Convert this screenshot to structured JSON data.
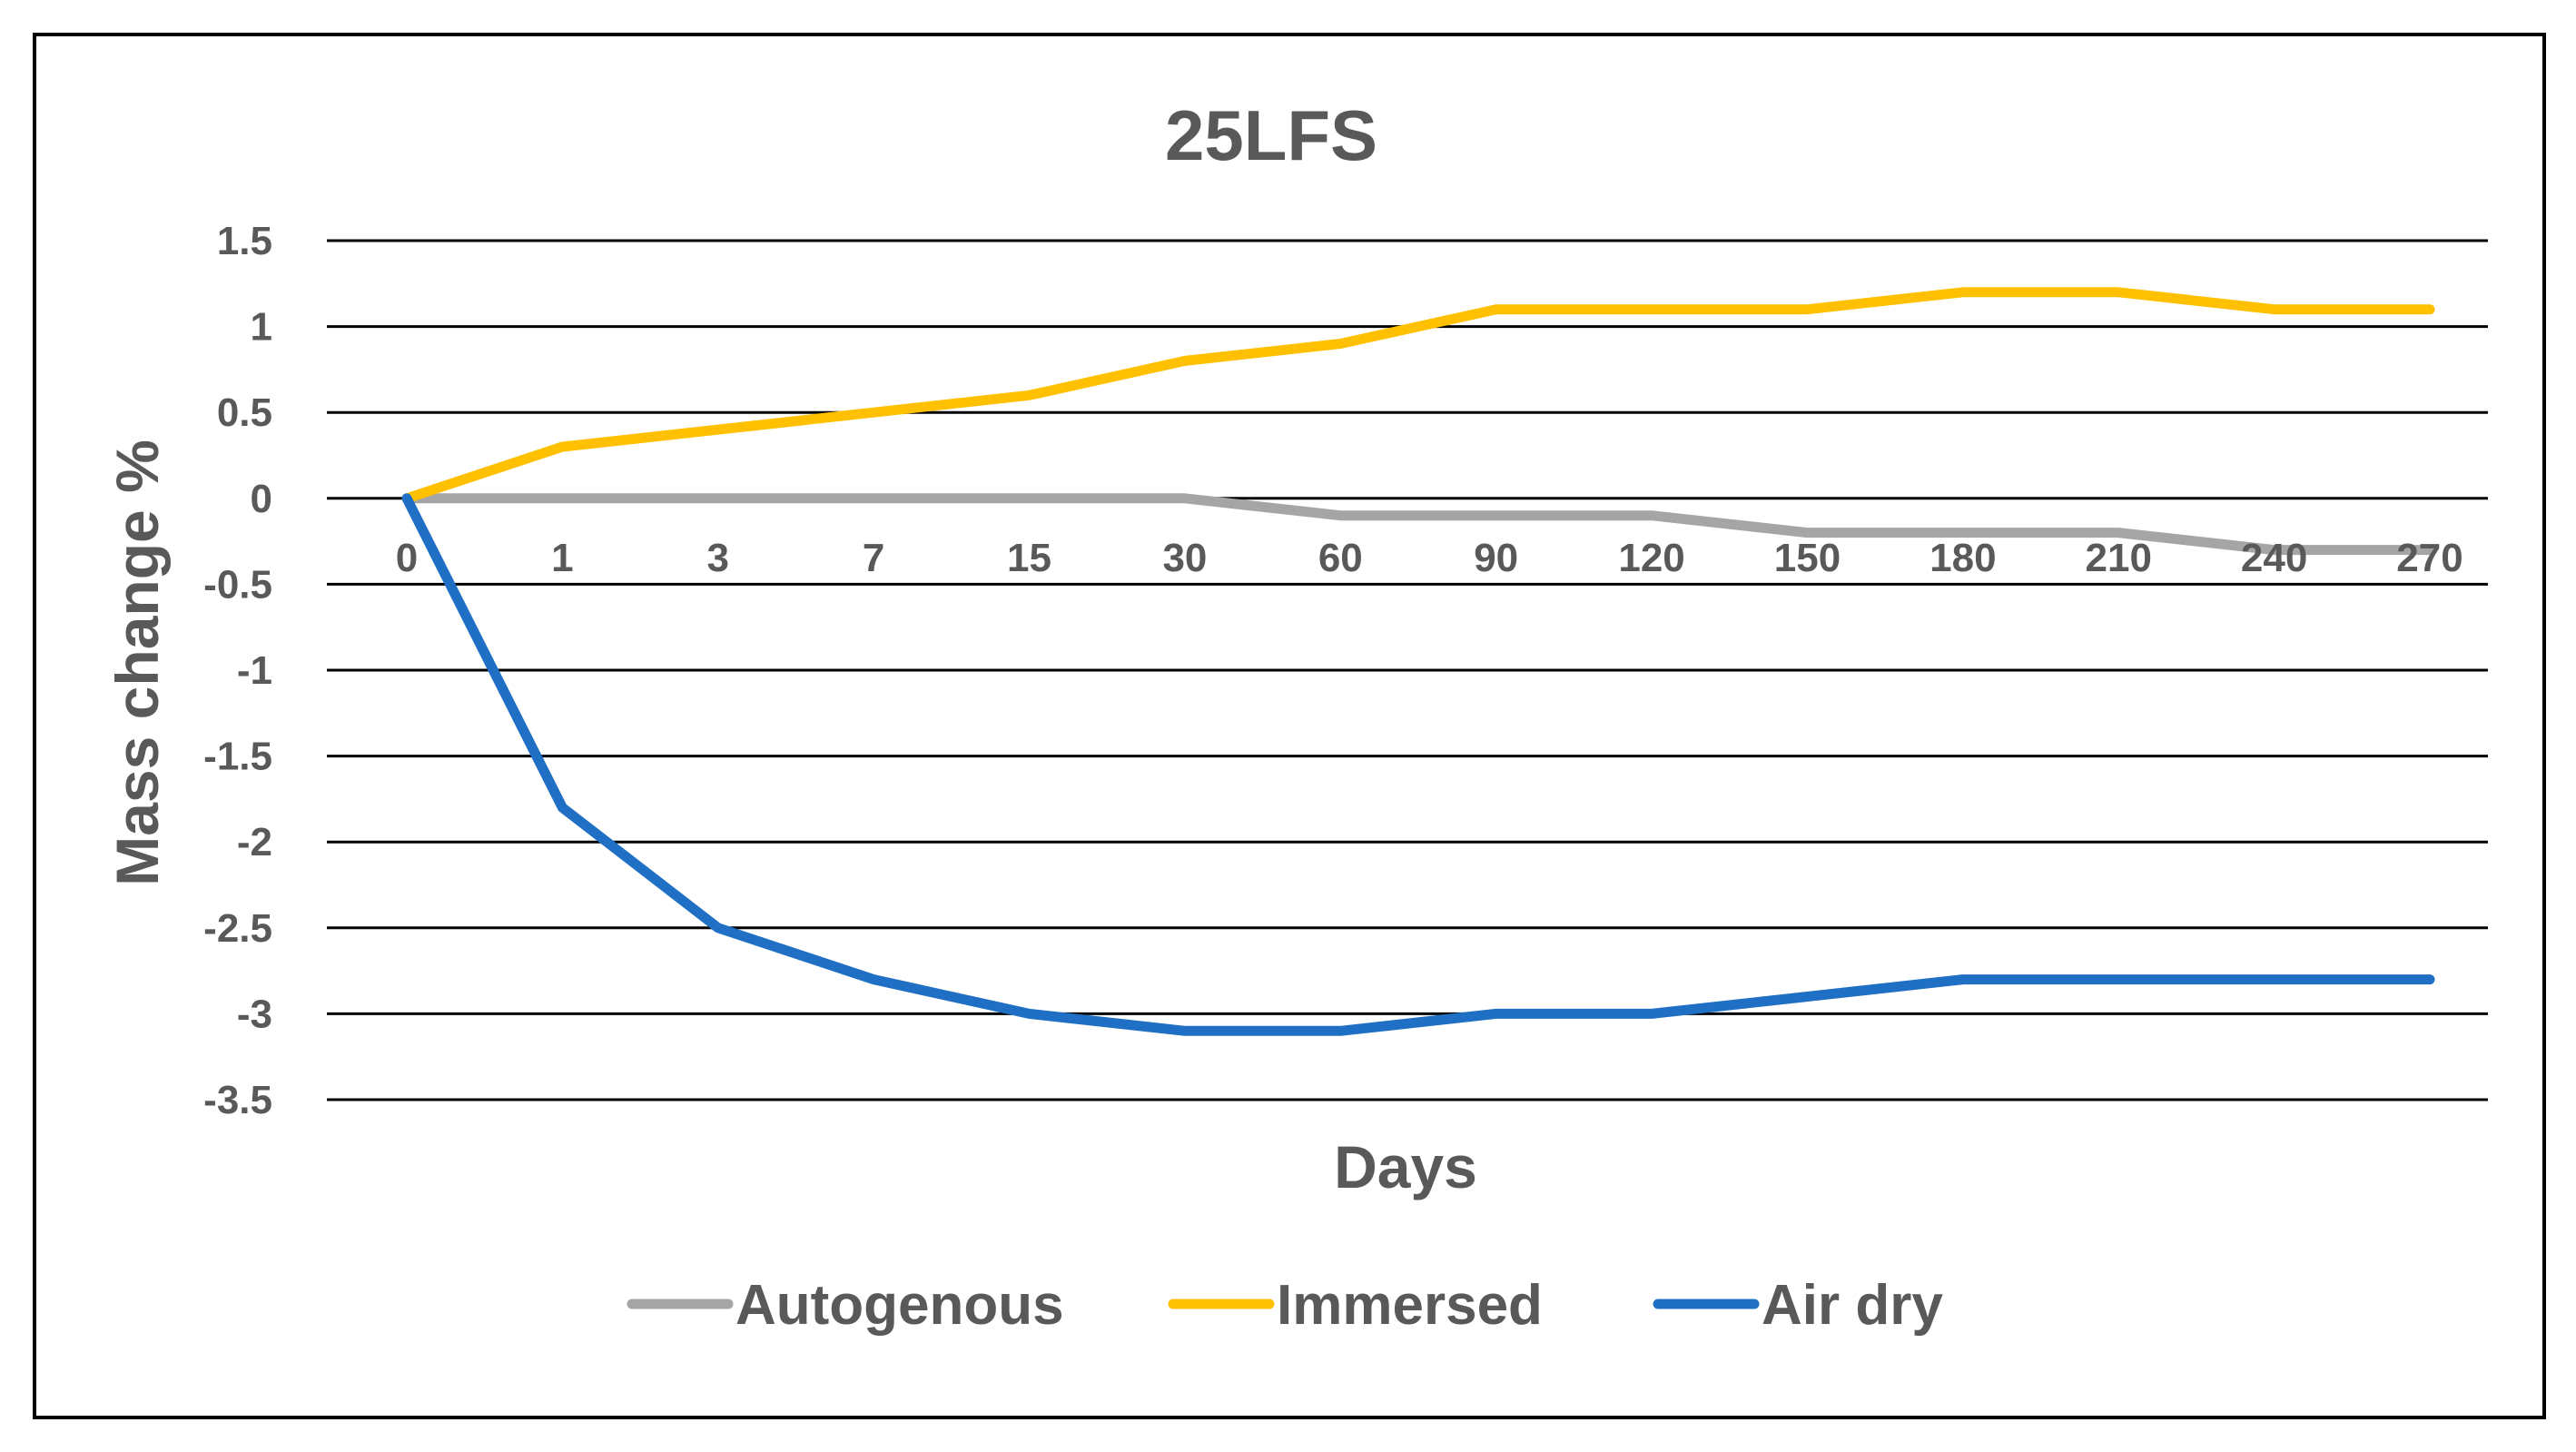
{
  "chart_data": {
    "type": "line",
    "title": "25LFS",
    "xlabel": "Days",
    "ylabel": "Mass change %",
    "categories": [
      "0",
      "1",
      "3",
      "7",
      "15",
      "30",
      "60",
      "90",
      "120",
      "150",
      "180",
      "210",
      "240",
      "270"
    ],
    "ylim": [
      -3.5,
      1.5
    ],
    "yticks": [
      "1.5",
      "1",
      "0.5",
      "0",
      "-0.5",
      "-1",
      "-1.5",
      "-2",
      "-2.5",
      "-3",
      "-3.5"
    ],
    "ytick_values": [
      1.5,
      1,
      0.5,
      0,
      -0.5,
      -1,
      -1.5,
      -2,
      -2.5,
      -3,
      -3.5
    ],
    "grid": true,
    "legend_position": "bottom",
    "series": [
      {
        "name": "Autogenous",
        "color": "#A5A5A5",
        "values": [
          0,
          0,
          0,
          0,
          0,
          0,
          -0.1,
          -0.1,
          -0.1,
          -0.2,
          -0.2,
          -0.2,
          -0.3,
          -0.3
        ]
      },
      {
        "name": "Immersed",
        "color": "#FFC000",
        "values": [
          0,
          0.3,
          0.4,
          0.5,
          0.6,
          0.8,
          0.9,
          1.1,
          1.1,
          1.1,
          1.2,
          1.2,
          1.1,
          1.1
        ]
      },
      {
        "name": "Air dry",
        "color": "#1F6FC5",
        "values": [
          0,
          -1.8,
          -2.5,
          -2.8,
          -3.0,
          -3.1,
          -3.1,
          -3.0,
          -3.0,
          -2.9,
          -2.8,
          -2.8,
          -2.8,
          -2.8
        ]
      }
    ]
  }
}
